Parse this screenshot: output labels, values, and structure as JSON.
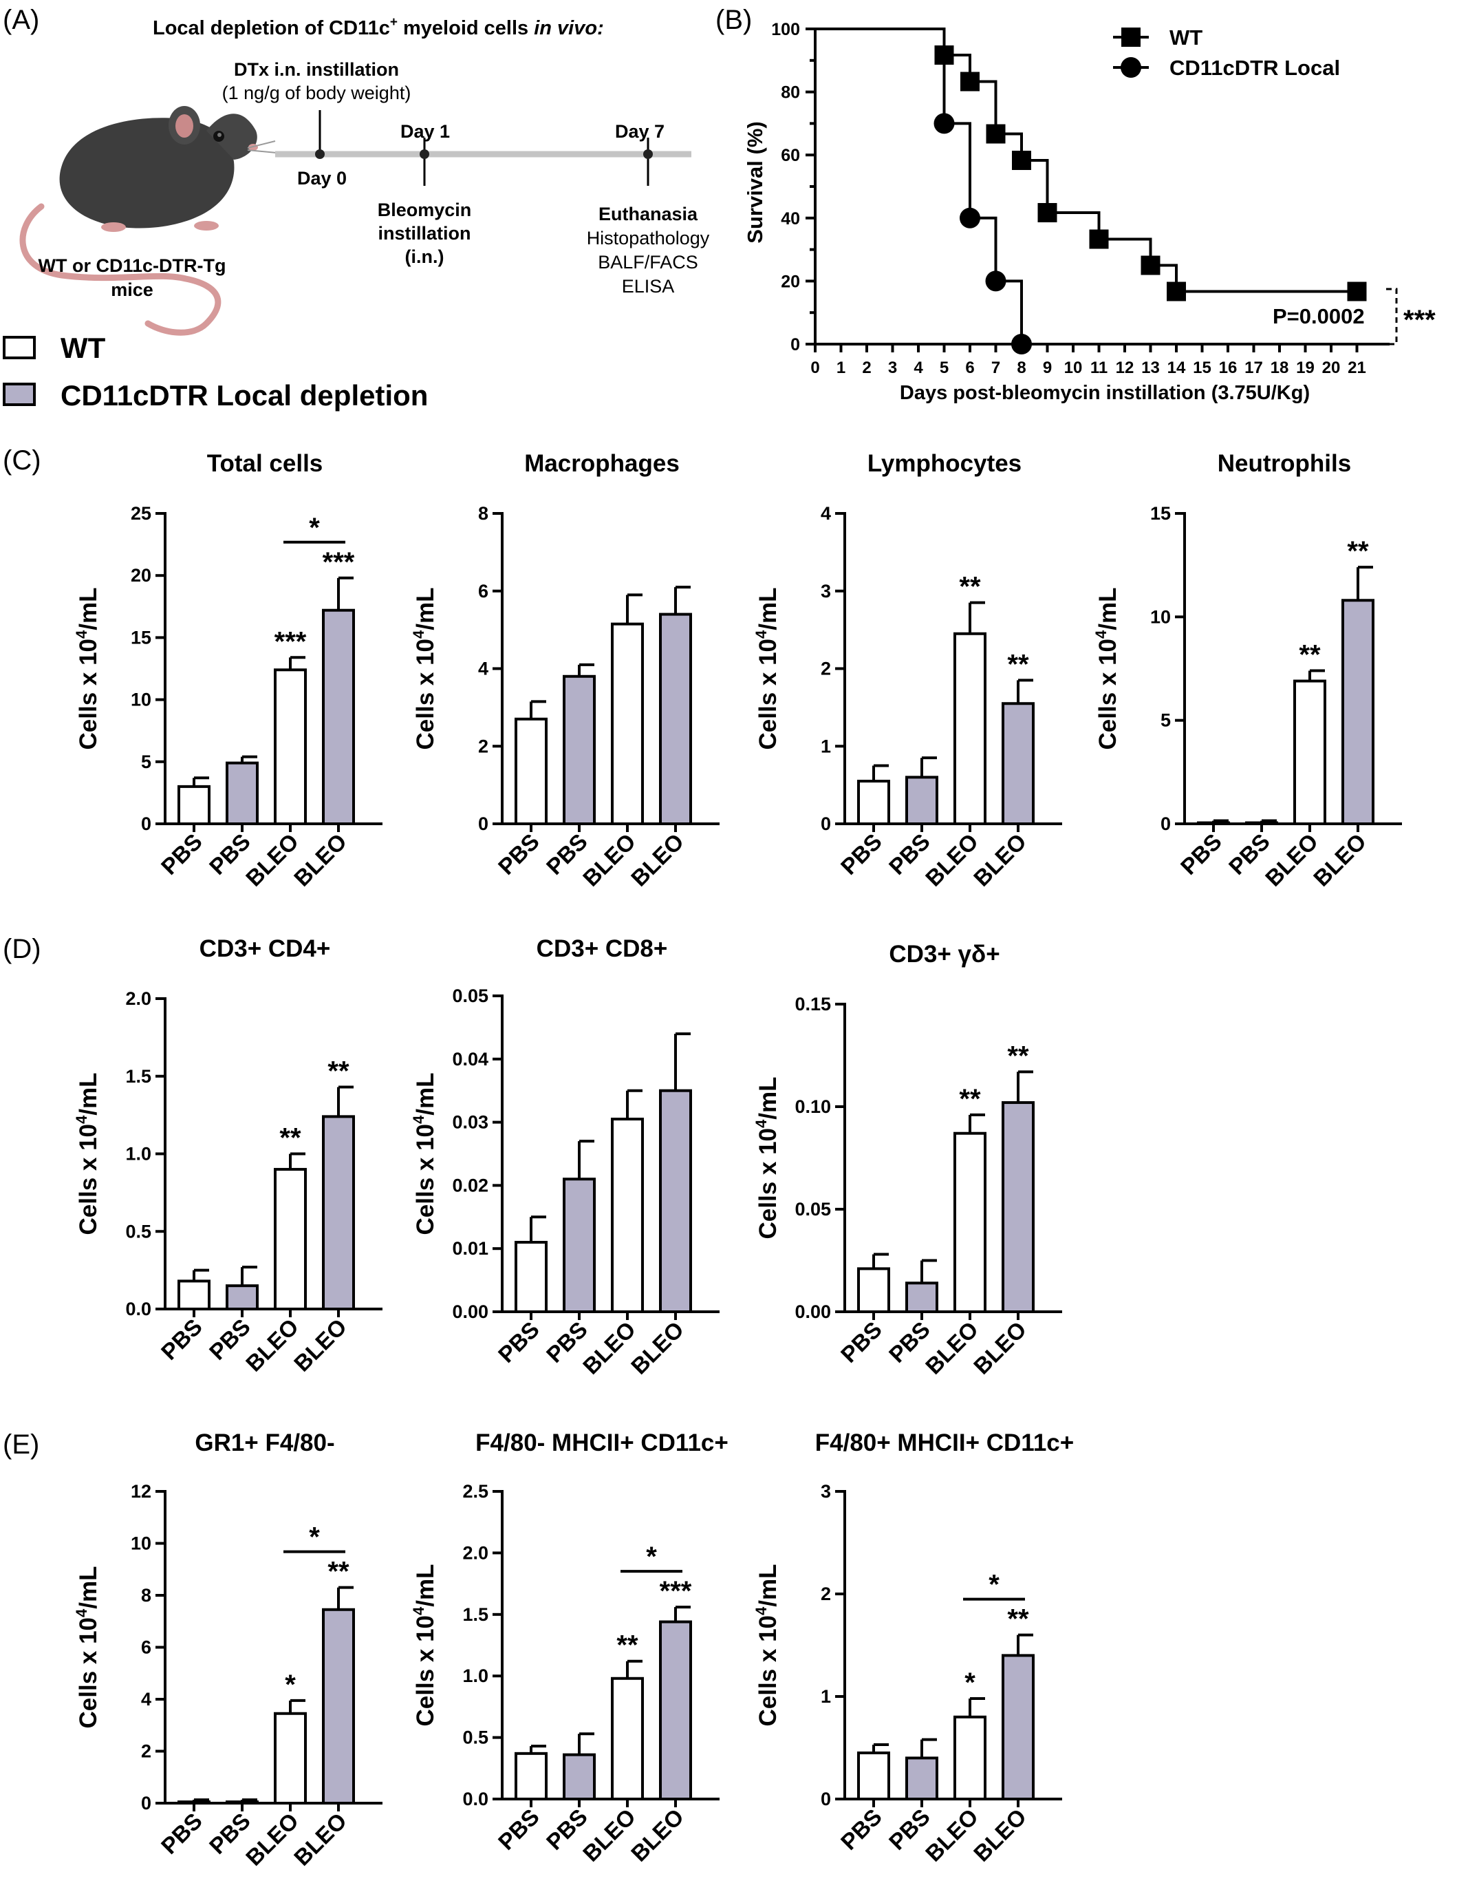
{
  "panel_labels": {
    "A": "(A)",
    "B": "(B)",
    "C": "(C)",
    "D": "(D)",
    "E": "(E)"
  },
  "schematic": {
    "title_main": "Local depletion of CD11c",
    "title_sup": "+",
    "title_rest": " myeloid cells ",
    "title_italic": "in vivo:",
    "dtx_line1": "DTx i.n. instillation",
    "dtx_line2": "(1 ng/g of body weight)",
    "day0": "Day 0",
    "day1": "Day 1",
    "day7": "Day 7",
    "bleo_line1": "Bleomycin",
    "bleo_line2": "instillation",
    "bleo_line3": "(i.n.)",
    "eu_line1": "Euthanasia",
    "eu_line2": "Histopathology",
    "eu_line3": "BALF/FACS",
    "eu_line4": "ELISA",
    "mouse_line1": "WT or CD11c-DTR-Tg",
    "mouse_line2": "mice"
  },
  "legend": {
    "wt": "WT",
    "dtr": "CD11cDTR Local depletion"
  },
  "colors": {
    "wt_fill": "#ffffff",
    "dtr_fill": "#b3b0c8",
    "stroke": "#000000",
    "timeline": "#c4c4c4",
    "mouse_body": "#3d3d3d",
    "mouse_tail": "#d69a9a"
  },
  "survival": {
    "ylabel": "Survival (%)",
    "xlabel": "Days post-bleomycin instillation (3.75U/Kg)",
    "legend_wt": "WT",
    "legend_dtr": "CD11cDTR Local",
    "pvalue": "P=0.0002",
    "sig": "***",
    "y_ticks": [
      "0",
      "20",
      "40",
      "60",
      "80",
      "100"
    ],
    "x_ticks": [
      "0",
      "1",
      "2",
      "3",
      "4",
      "5",
      "6",
      "7",
      "8",
      "9",
      "10",
      "11",
      "12",
      "13",
      "14",
      "15",
      "16",
      "17",
      "18",
      "19",
      "20",
      "21"
    ]
  },
  "chart_data": [
    {
      "type": "line",
      "subtype": "kaplan-meier",
      "xlabel": "Days post-bleomycin instillation (3.75U/Kg)",
      "ylabel": "Survival (%)",
      "xlim": [
        0,
        22
      ],
      "ylim": [
        0,
        100
      ],
      "series": [
        {
          "name": "WT",
          "marker": "square",
          "steps": [
            [
              0,
              100
            ],
            [
              5,
              100
            ],
            [
              5,
              91.7
            ],
            [
              6,
              91.7
            ],
            [
              6,
              83.3
            ],
            [
              7,
              83.3
            ],
            [
              7,
              66.7
            ],
            [
              8,
              66.7
            ],
            [
              8,
              58.3
            ],
            [
              9,
              58.3
            ],
            [
              9,
              41.7
            ],
            [
              11,
              41.7
            ],
            [
              11,
              33.3
            ],
            [
              13,
              33.3
            ],
            [
              13,
              25
            ],
            [
              14,
              25
            ],
            [
              14,
              16.7
            ],
            [
              21,
              16.7
            ]
          ],
          "markers": [
            [
              5,
              91.7
            ],
            [
              6,
              83.3
            ],
            [
              7,
              66.7
            ],
            [
              8,
              58.3
            ],
            [
              9,
              41.7
            ],
            [
              11,
              33.3
            ],
            [
              13,
              25
            ],
            [
              14,
              16.7
            ],
            [
              21,
              16.7
            ]
          ]
        },
        {
          "name": "CD11cDTR Local",
          "marker": "circle",
          "steps": [
            [
              0,
              100
            ],
            [
              5,
              100
            ],
            [
              5,
              70
            ],
            [
              6,
              70
            ],
            [
              6,
              40
            ],
            [
              7,
              40
            ],
            [
              7,
              20
            ],
            [
              8,
              20
            ],
            [
              8,
              0
            ]
          ],
          "markers": [
            [
              5,
              70
            ],
            [
              6,
              40
            ],
            [
              7,
              20
            ],
            [
              8,
              0
            ]
          ]
        }
      ]
    },
    {
      "type": "bar",
      "panel": "C",
      "title": "Total cells",
      "ylim": [
        0,
        25
      ],
      "yticks": [
        "0",
        "5",
        "10",
        "15",
        "20",
        "25"
      ],
      "categories": [
        "PBS",
        "PBS",
        "BLEO",
        "BLEO"
      ],
      "values": [
        3.0,
        4.9,
        12.4,
        17.2
      ],
      "errors": [
        0.7,
        0.5,
        1.0,
        2.6
      ],
      "sig": [
        "",
        "",
        "***",
        "***"
      ],
      "bracket": "*"
    },
    {
      "type": "bar",
      "panel": "C",
      "title": "Macrophages",
      "ylim": [
        0,
        8
      ],
      "yticks": [
        "0",
        "2",
        "4",
        "6",
        "8"
      ],
      "categories": [
        "PBS",
        "PBS",
        "BLEO",
        "BLEO"
      ],
      "values": [
        2.7,
        3.8,
        5.15,
        5.4
      ],
      "errors": [
        0.45,
        0.3,
        0.75,
        0.7
      ],
      "sig": [
        "",
        "",
        "",
        ""
      ],
      "bracket": ""
    },
    {
      "type": "bar",
      "panel": "C",
      "title": "Lymphocytes",
      "ylim": [
        0,
        4
      ],
      "yticks": [
        "0",
        "1",
        "2",
        "3",
        "4"
      ],
      "categories": [
        "PBS",
        "PBS",
        "BLEO",
        "BLEO"
      ],
      "values": [
        0.55,
        0.6,
        2.45,
        1.55
      ],
      "errors": [
        0.2,
        0.25,
        0.4,
        0.3
      ],
      "sig": [
        "",
        "",
        "**",
        "**"
      ],
      "bracket": ""
    },
    {
      "type": "bar",
      "panel": "C",
      "title": "Neutrophils",
      "ylim": [
        0,
        15
      ],
      "yticks": [
        "0",
        "5",
        "10",
        "15"
      ],
      "categories": [
        "PBS",
        "PBS",
        "BLEO",
        "BLEO"
      ],
      "values": [
        0.05,
        0.05,
        6.9,
        10.8
      ],
      "errors": [
        0.1,
        0.1,
        0.5,
        1.6
      ],
      "sig": [
        "",
        "",
        "**",
        "**"
      ],
      "bracket": ""
    },
    {
      "type": "bar",
      "panel": "D",
      "title": "CD3+ CD4+",
      "ylim": [
        0,
        2.0
      ],
      "yticks": [
        "0.0",
        "0.5",
        "1.0",
        "1.5",
        "2.0"
      ],
      "categories": [
        "PBS",
        "PBS",
        "BLEO",
        "BLEO"
      ],
      "values": [
        0.18,
        0.15,
        0.9,
        1.24
      ],
      "errors": [
        0.07,
        0.12,
        0.1,
        0.19
      ],
      "sig": [
        "",
        "",
        "**",
        "**"
      ],
      "bracket": ""
    },
    {
      "type": "bar",
      "panel": "D",
      "title": "CD3+ CD8+",
      "ylim": [
        0,
        0.05
      ],
      "yticks": [
        "0.00",
        "0.01",
        "0.02",
        "0.03",
        "0.04",
        "0.05"
      ],
      "categories": [
        "PBS",
        "PBS",
        "BLEO",
        "BLEO"
      ],
      "values": [
        0.011,
        0.021,
        0.0305,
        0.035
      ],
      "errors": [
        0.004,
        0.006,
        0.0045,
        0.009
      ],
      "sig": [
        "",
        "",
        "",
        ""
      ],
      "bracket": ""
    },
    {
      "type": "bar",
      "panel": "D",
      "title": "CD3+ γδ+",
      "ylim": [
        0,
        0.15
      ],
      "yticks": [
        "0.00",
        "0.05",
        "0.10",
        "0.15"
      ],
      "categories": [
        "PBS",
        "PBS",
        "BLEO",
        "BLEO"
      ],
      "values": [
        0.021,
        0.014,
        0.087,
        0.102
      ],
      "errors": [
        0.007,
        0.011,
        0.009,
        0.015
      ],
      "sig": [
        "",
        "",
        "**",
        "**"
      ],
      "bracket": ""
    },
    {
      "type": "bar",
      "panel": "E",
      "title": "GR1+ F4/80-",
      "ylim": [
        0,
        12
      ],
      "yticks": [
        "0",
        "2",
        "4",
        "6",
        "8",
        "10",
        "12"
      ],
      "categories": [
        "PBS",
        "PBS",
        "BLEO",
        "BLEO"
      ],
      "values": [
        0.05,
        0.05,
        3.45,
        7.45
      ],
      "errors": [
        0.08,
        0.08,
        0.5,
        0.85
      ],
      "sig": [
        "",
        "",
        "*",
        "**"
      ],
      "bracket": "*"
    },
    {
      "type": "bar",
      "panel": "E",
      "title": "F4/80- MHCII+ CD11c+",
      "ylim": [
        0,
        2.5
      ],
      "yticks": [
        "0.0",
        "0.5",
        "1.0",
        "1.5",
        "2.0",
        "2.5"
      ],
      "categories": [
        "PBS",
        "PBS",
        "BLEO",
        "BLEO"
      ],
      "values": [
        0.37,
        0.36,
        0.98,
        1.44
      ],
      "errors": [
        0.06,
        0.17,
        0.14,
        0.12
      ],
      "sig": [
        "",
        "",
        "**",
        "***"
      ],
      "bracket": "*"
    },
    {
      "type": "bar",
      "panel": "E",
      "title": "F4/80+ MHCII+ CD11c+",
      "ylim": [
        0,
        3
      ],
      "yticks": [
        "0",
        "1",
        "2",
        "3"
      ],
      "categories": [
        "PBS",
        "PBS",
        "BLEO",
        "BLEO"
      ],
      "values": [
        0.45,
        0.4,
        0.8,
        1.4
      ],
      "errors": [
        0.08,
        0.18,
        0.18,
        0.2
      ],
      "sig": [
        "",
        "",
        "*",
        "**"
      ],
      "bracket": "*"
    }
  ],
  "bar_ylabel": {
    "pre": "Cells x 10",
    "sup": "4",
    "post": "/mL"
  }
}
